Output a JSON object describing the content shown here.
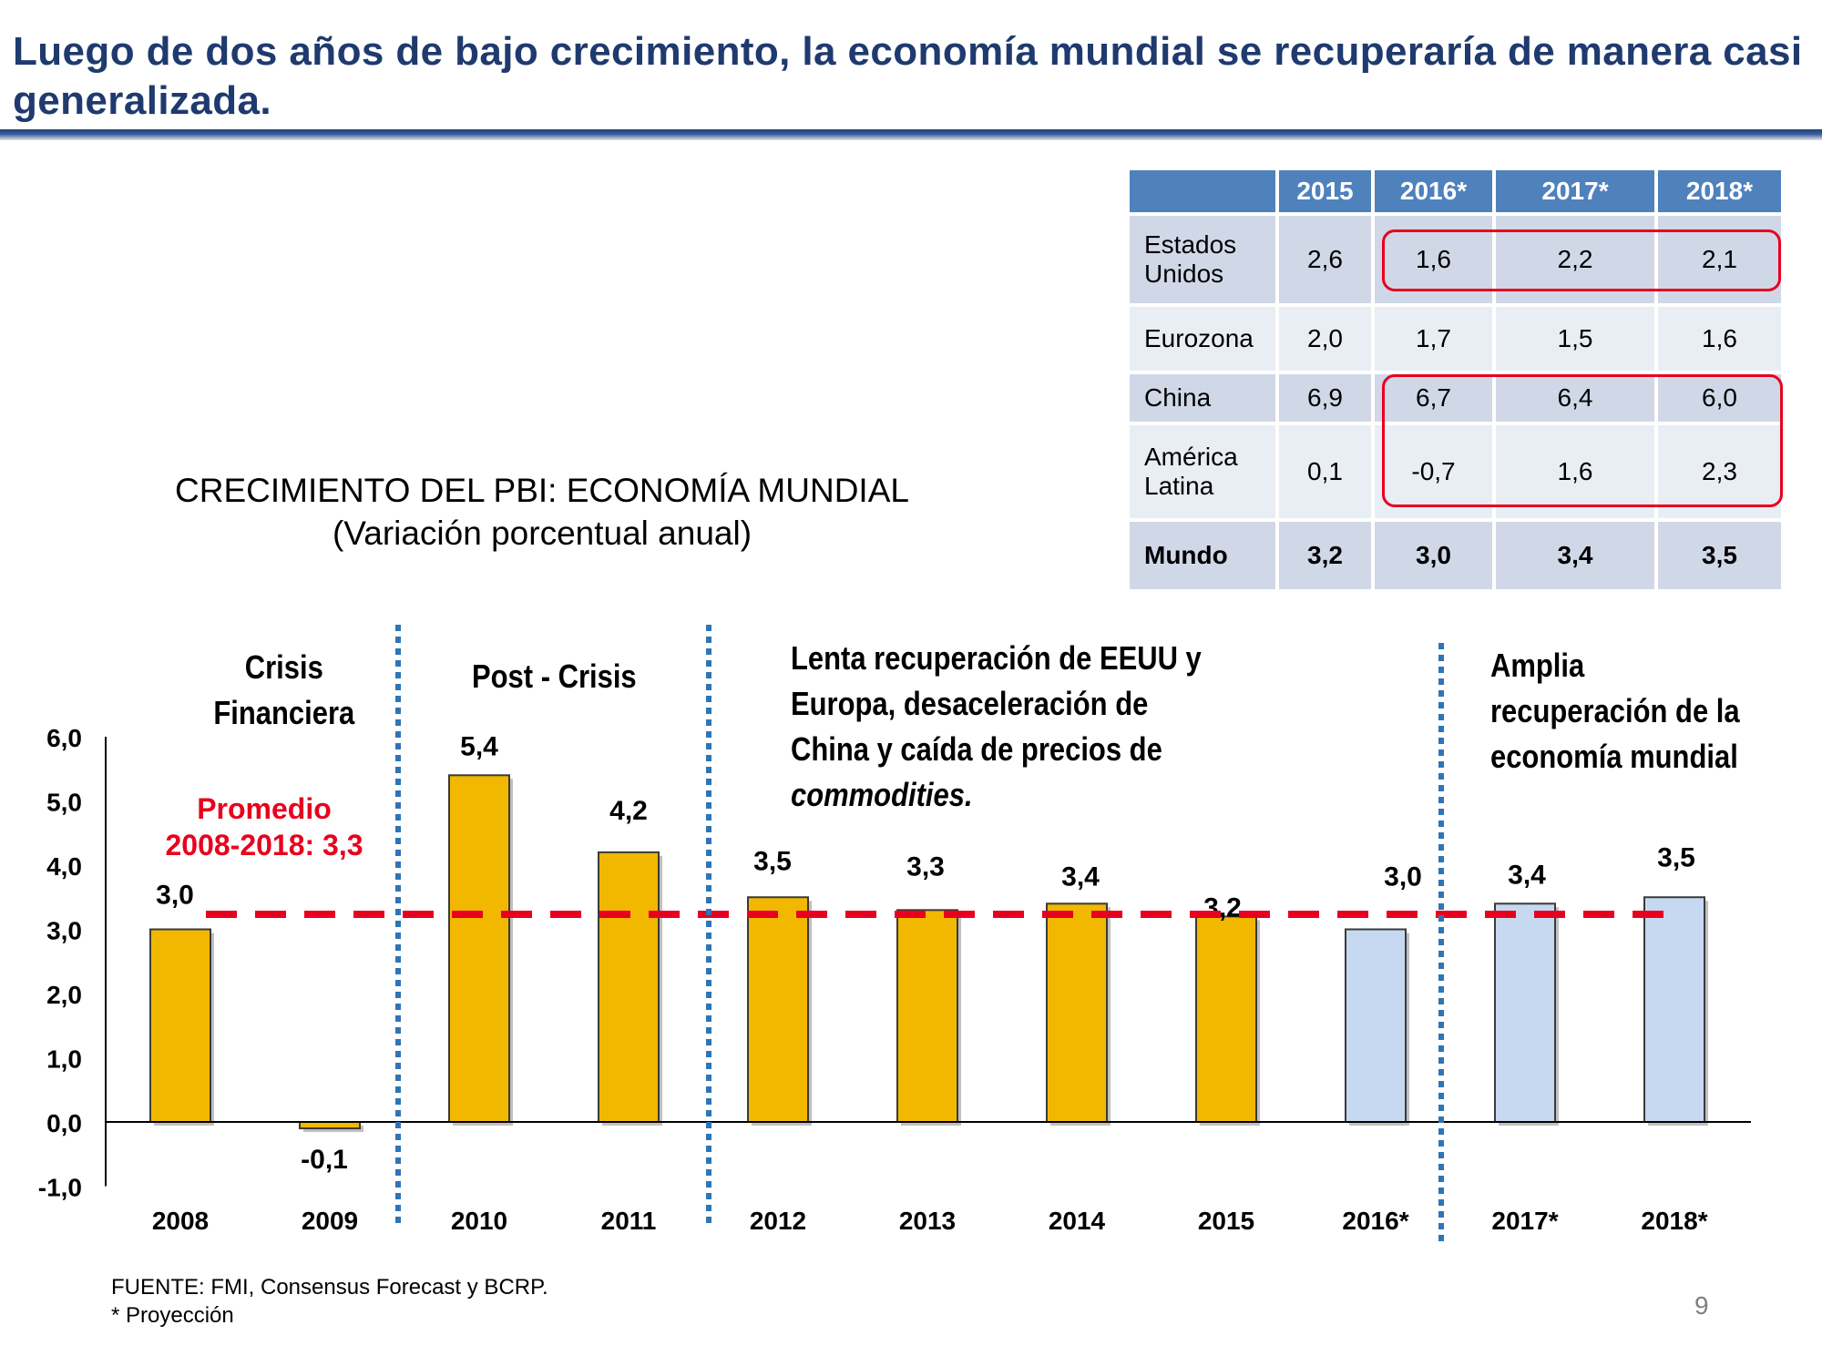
{
  "slide": {
    "title": "Luego de dos años de bajo crecimiento, la economía mundial se recuperaría de manera casi generalizada.",
    "page_number": "9"
  },
  "table": {
    "headers": [
      "",
      "2015",
      "2016*",
      "2017*",
      "2018*"
    ],
    "rows": [
      {
        "country": "Estados Unidos",
        "values": [
          "2,6",
          "1,6",
          "2,2",
          "2,1"
        ]
      },
      {
        "country": "Eurozona",
        "values": [
          "2,0",
          "1,7",
          "1,5",
          "1,6"
        ]
      },
      {
        "country": "China",
        "values": [
          "6,9",
          "6,7",
          "6,4",
          "6,0"
        ]
      },
      {
        "country": "América Latina",
        "values": [
          "0,1",
          "-0,7",
          "1,6",
          "2,3"
        ]
      },
      {
        "country": "Mundo",
        "values": [
          "3,2",
          "3,0",
          "3,4",
          "3,5"
        ]
      }
    ],
    "highlight_color": "#e8001e"
  },
  "periods": {
    "crisis": "Crisis Financiera",
    "post_crisis": "Post - Crisis",
    "slow_recovery_lines": [
      "Lenta recuperación de EEUU y",
      "Europa, desaceleración de",
      "China y caída de precios de"
    ],
    "slow_recovery_italic": "commodities.",
    "broad_recovery": "Amplia recuperación de la economía mundial"
  },
  "average": {
    "label_line1": "Promedio",
    "label_line2": "2008-2018: 3,3",
    "value": 3.3,
    "color": "#e8001e"
  },
  "source": {
    "line1": "FUENTE: FMI, Consensus Forecast y BCRP.",
    "line2": "* Proyección"
  },
  "chart_data": {
    "type": "bar",
    "title": "CRECIMIENTO DEL PBI: ECONOMÍA MUNDIAL",
    "subtitle": "(Variación porcentual anual)",
    "categories": [
      "2008",
      "2009",
      "2010",
      "2011",
      "2012",
      "2013",
      "2014",
      "2015",
      "2016*",
      "2017*",
      "2018*"
    ],
    "values": [
      3.0,
      -0.1,
      5.4,
      4.2,
      3.5,
      3.3,
      3.4,
      3.2,
      3.0,
      3.4,
      3.5
    ],
    "value_labels": [
      "3,0",
      "-0,1",
      "5,4",
      "4,2",
      "3,5",
      "3,3",
      "3,4",
      "3,2",
      "3,0",
      "3,4",
      "3,5"
    ],
    "projected": [
      false,
      false,
      false,
      false,
      false,
      false,
      false,
      false,
      true,
      true,
      true
    ],
    "ylim": [
      -1.0,
      6.0
    ],
    "yticks": [
      -1.0,
      0.0,
      1.0,
      2.0,
      3.0,
      4.0,
      5.0,
      6.0
    ],
    "ytick_labels": [
      "-1,0",
      "0,0",
      "1,0",
      "2,0",
      "3,0",
      "4,0",
      "5,0",
      "6,0"
    ],
    "colors": {
      "actual": "#f2b800",
      "projected": "#c6d9f1",
      "separator": "#2e75b6"
    },
    "separators_after": [
      "2009",
      "2011",
      "2016*"
    ],
    "xlabel": "",
    "ylabel": ""
  }
}
